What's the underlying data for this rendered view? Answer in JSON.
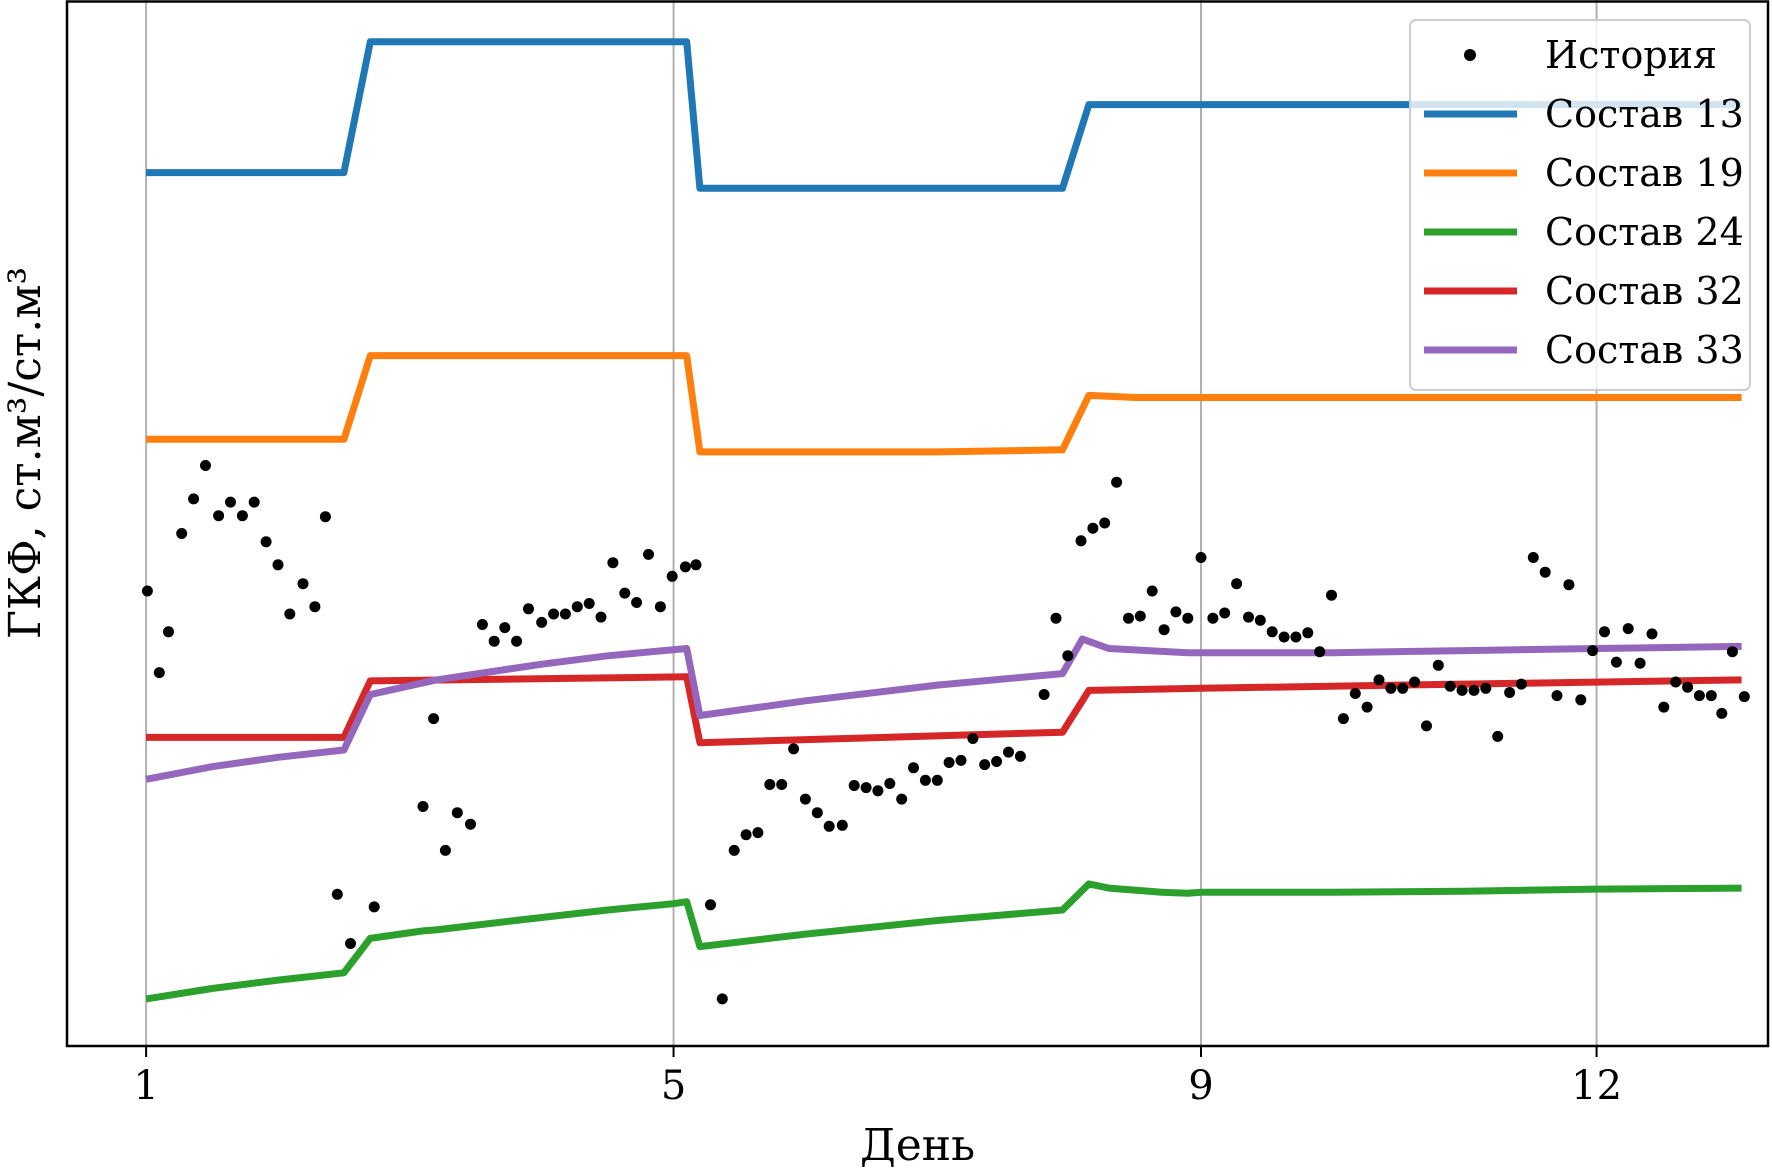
{
  "chart_data": {
    "type": "line",
    "xlabel": "День",
    "ylabel": "ГКФ, ст.м³/ст.м³",
    "x_ticks": [
      1,
      5,
      9,
      12
    ],
    "xlim": [
      0.4,
      13.3
    ],
    "ylim": [
      0,
      100
    ],
    "y_ticks_shown": false,
    "grid": "x-only",
    "legend_position": "top-right",
    "colors": {
      "history": "#000000",
      "s13": "#1f77b4",
      "s19": "#ff7f0e",
      "s24": "#2ca02c",
      "s32": "#d62728",
      "s33": "#9467bd",
      "grid": "#b0b0b0"
    },
    "history": {
      "name": "История",
      "points": [
        [
          1.01,
          43.5
        ],
        [
          1.1,
          35.7
        ],
        [
          1.17,
          39.6
        ],
        [
          1.27,
          49.0
        ],
        [
          1.36,
          52.3
        ],
        [
          1.45,
          55.5
        ],
        [
          1.55,
          50.7
        ],
        [
          1.64,
          52.0
        ],
        [
          1.73,
          50.7
        ],
        [
          1.82,
          52.0
        ],
        [
          1.91,
          48.2
        ],
        [
          2.0,
          46.0
        ],
        [
          2.09,
          41.3
        ],
        [
          2.19,
          44.2
        ],
        [
          2.28,
          42.0
        ],
        [
          2.36,
          50.6
        ],
        [
          2.45,
          14.5
        ],
        [
          2.55,
          9.8
        ],
        [
          2.73,
          13.3
        ],
        [
          3.1,
          22.9
        ],
        [
          3.18,
          31.3
        ],
        [
          3.27,
          18.7
        ],
        [
          3.36,
          22.3
        ],
        [
          3.46,
          21.2
        ],
        [
          3.55,
          40.3
        ],
        [
          3.64,
          38.7
        ],
        [
          3.72,
          40.0
        ],
        [
          3.81,
          38.7
        ],
        [
          3.9,
          41.8
        ],
        [
          4.0,
          40.5
        ],
        [
          4.09,
          41.3
        ],
        [
          4.18,
          41.3
        ],
        [
          4.27,
          42.0
        ],
        [
          4.36,
          42.3
        ],
        [
          4.45,
          41.0
        ],
        [
          4.54,
          46.2
        ],
        [
          4.63,
          43.3
        ],
        [
          4.72,
          42.4
        ],
        [
          4.81,
          47.0
        ],
        [
          4.9,
          42.0
        ],
        [
          4.99,
          44.9
        ],
        [
          5.09,
          45.8
        ],
        [
          5.17,
          46.0
        ],
        [
          5.28,
          13.5
        ],
        [
          5.37,
          4.5
        ],
        [
          5.46,
          18.7
        ],
        [
          5.55,
          20.2
        ],
        [
          5.64,
          20.4
        ],
        [
          5.73,
          25.0
        ],
        [
          5.82,
          25.0
        ],
        [
          5.91,
          28.4
        ],
        [
          6.0,
          23.6
        ],
        [
          6.09,
          22.3
        ],
        [
          6.18,
          21.0
        ],
        [
          6.28,
          21.1
        ],
        [
          6.37,
          24.9
        ],
        [
          6.46,
          24.7
        ],
        [
          6.55,
          24.4
        ],
        [
          6.64,
          25.1
        ],
        [
          6.73,
          23.6
        ],
        [
          6.82,
          26.6
        ],
        [
          6.91,
          25.4
        ],
        [
          7.0,
          25.4
        ],
        [
          7.09,
          27.1
        ],
        [
          7.18,
          27.3
        ],
        [
          7.27,
          29.4
        ],
        [
          7.36,
          26.9
        ],
        [
          7.45,
          27.2
        ],
        [
          7.54,
          28.1
        ],
        [
          7.63,
          27.7
        ],
        [
          7.81,
          33.6
        ],
        [
          7.9,
          40.9
        ],
        [
          7.99,
          37.3
        ],
        [
          8.09,
          48.3
        ],
        [
          8.18,
          49.5
        ],
        [
          8.27,
          50.0
        ],
        [
          8.36,
          53.9
        ],
        [
          8.45,
          40.9
        ],
        [
          8.54,
          41.1
        ],
        [
          8.63,
          43.5
        ],
        [
          8.72,
          39.8
        ],
        [
          8.81,
          41.5
        ],
        [
          8.9,
          40.9
        ],
        [
          9.0,
          46.7
        ],
        [
          9.09,
          40.9
        ],
        [
          9.18,
          41.4
        ],
        [
          9.27,
          44.2
        ],
        [
          9.36,
          41.0
        ],
        [
          9.45,
          40.7
        ],
        [
          9.54,
          39.6
        ],
        [
          9.63,
          39.1
        ],
        [
          9.72,
          39.1
        ],
        [
          9.81,
          39.5
        ],
        [
          9.9,
          37.7
        ],
        [
          9.99,
          43.1
        ],
        [
          10.08,
          31.3
        ],
        [
          10.17,
          33.7
        ],
        [
          10.26,
          32.4
        ],
        [
          10.35,
          35.0
        ],
        [
          10.44,
          34.2
        ],
        [
          10.53,
          34.2
        ],
        [
          10.62,
          34.8
        ],
        [
          10.71,
          30.6
        ],
        [
          10.8,
          36.4
        ],
        [
          10.89,
          34.4
        ],
        [
          10.98,
          34.0
        ],
        [
          11.07,
          34.0
        ],
        [
          11.16,
          34.2
        ],
        [
          11.25,
          29.6
        ],
        [
          11.34,
          33.8
        ],
        [
          11.43,
          34.6
        ],
        [
          11.52,
          46.7
        ],
        [
          11.61,
          45.3
        ],
        [
          11.7,
          33.5
        ],
        [
          11.79,
          44.1
        ],
        [
          11.88,
          33.1
        ],
        [
          11.97,
          37.8
        ],
        [
          12.06,
          39.6
        ],
        [
          12.15,
          36.7
        ],
        [
          12.24,
          39.9
        ],
        [
          12.33,
          36.6
        ],
        [
          12.42,
          39.4
        ],
        [
          12.51,
          32.4
        ],
        [
          12.6,
          34.8
        ],
        [
          12.69,
          34.3
        ],
        [
          12.78,
          33.5
        ],
        [
          12.87,
          33.5
        ],
        [
          12.95,
          31.8
        ],
        [
          13.03,
          37.7
        ],
        [
          13.12,
          33.4
        ]
      ]
    },
    "series": [
      {
        "name": "Состав 13",
        "key": "s13",
        "points": [
          [
            1.0,
            83.5
          ],
          [
            2.5,
            83.5
          ],
          [
            2.7,
            96.0
          ],
          [
            5.1,
            96.0
          ],
          [
            5.2,
            82.0
          ],
          [
            7.95,
            82.0
          ],
          [
            8.15,
            90.0
          ],
          [
            13.1,
            90.0
          ]
        ]
      },
      {
        "name": "Состав 19",
        "key": "s19",
        "points": [
          [
            1.0,
            58.0
          ],
          [
            2.5,
            58.0
          ],
          [
            2.7,
            66.0
          ],
          [
            5.1,
            66.0
          ],
          [
            5.2,
            56.8
          ],
          [
            7.0,
            56.8
          ],
          [
            7.95,
            57.0
          ],
          [
            8.15,
            62.2
          ],
          [
            8.5,
            62.0
          ],
          [
            13.1,
            62.0
          ]
        ]
      },
      {
        "name": "Состав 24",
        "key": "s24",
        "points": [
          [
            1.0,
            4.5
          ],
          [
            1.5,
            5.5
          ],
          [
            2.0,
            6.3
          ],
          [
            2.5,
            7.0
          ],
          [
            2.7,
            10.3
          ],
          [
            3.1,
            11.0
          ],
          [
            3.2,
            11.1
          ],
          [
            3.8,
            12.0
          ],
          [
            4.5,
            13.0
          ],
          [
            5.0,
            13.6
          ],
          [
            5.1,
            13.8
          ],
          [
            5.2,
            9.5
          ],
          [
            6.0,
            10.7
          ],
          [
            7.0,
            12.0
          ],
          [
            7.95,
            13.0
          ],
          [
            8.15,
            15.5
          ],
          [
            8.3,
            15.1
          ],
          [
            8.7,
            14.7
          ],
          [
            8.9,
            14.6
          ],
          [
            9.0,
            14.7
          ],
          [
            10.0,
            14.7
          ],
          [
            11.0,
            14.8
          ],
          [
            12.0,
            15.0
          ],
          [
            13.1,
            15.1
          ]
        ]
      },
      {
        "name": "Состав 32",
        "key": "s32",
        "points": [
          [
            1.0,
            29.5
          ],
          [
            2.5,
            29.5
          ],
          [
            2.7,
            34.9
          ],
          [
            5.1,
            35.3
          ],
          [
            5.2,
            29.0
          ],
          [
            7.95,
            30.0
          ],
          [
            8.15,
            34.0
          ],
          [
            9.0,
            34.2
          ],
          [
            11.0,
            34.6
          ],
          [
            13.1,
            35.0
          ]
        ]
      },
      {
        "name": "Состав 33",
        "key": "s33",
        "points": [
          [
            1.0,
            25.5
          ],
          [
            1.5,
            26.7
          ],
          [
            2.0,
            27.6
          ],
          [
            2.5,
            28.3
          ],
          [
            2.7,
            33.6
          ],
          [
            3.2,
            35.0
          ],
          [
            4.0,
            36.5
          ],
          [
            4.5,
            37.3
          ],
          [
            5.1,
            38.0
          ],
          [
            5.2,
            31.6
          ],
          [
            6.0,
            33.0
          ],
          [
            7.0,
            34.5
          ],
          [
            7.95,
            35.6
          ],
          [
            8.1,
            38.9
          ],
          [
            8.3,
            38.0
          ],
          [
            8.9,
            37.6
          ],
          [
            9.0,
            37.6
          ],
          [
            10.0,
            37.6
          ],
          [
            11.0,
            37.8
          ],
          [
            12.0,
            38.0
          ],
          [
            13.1,
            38.2
          ]
        ]
      }
    ]
  }
}
